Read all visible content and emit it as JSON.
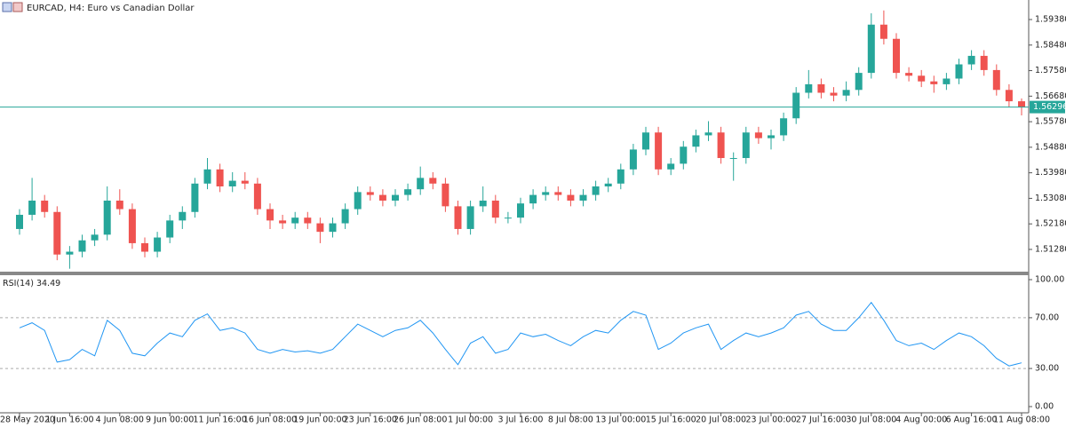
{
  "chart_data": {
    "type": "candlestick",
    "title": "EURCAD, H4:  Euro vs Canadian Dollar",
    "categories": [
      "28 May 2020",
      null,
      null,
      null,
      "1 Jun 16:00",
      null,
      null,
      null,
      "4 Jun 08:00",
      null,
      null,
      null,
      "9 Jun 00:00",
      null,
      null,
      null,
      "11 Jun 16:00",
      null,
      null,
      null,
      "16 Jun 08:00",
      null,
      null,
      null,
      "19 Jun 00:00",
      null,
      null,
      null,
      "23 Jun 16:00",
      null,
      null,
      null,
      "26 Jun 08:00",
      null,
      null,
      null,
      "1 Jul 00:00",
      null,
      null,
      null,
      "3 Jul 16:00",
      null,
      null,
      null,
      "8 Jul 08:00",
      null,
      null,
      null,
      "13 Jul 00:00",
      null,
      null,
      null,
      "15 Jul 16:00",
      null,
      null,
      null,
      "20 Jul 08:00",
      null,
      null,
      null,
      "23 Jul 00:00",
      null,
      null,
      null,
      "27 Jul 16:00",
      null,
      null,
      null,
      "30 Jul 08:00",
      null,
      null,
      null,
      "4 Aug 00:00",
      null,
      null,
      null,
      "6 Aug 16:00",
      null,
      null,
      null,
      "11 Aug 08:00"
    ],
    "open": [
      1.52,
      1.525,
      1.53,
      1.526,
      1.511,
      1.512,
      1.516,
      1.518,
      1.53,
      1.527,
      1.515,
      1.512,
      1.517,
      1.523,
      1.526,
      1.536,
      1.541,
      1.535,
      1.537,
      1.536,
      1.527,
      1.523,
      1.522,
      1.524,
      1.522,
      1.519,
      1.522,
      1.527,
      1.533,
      1.532,
      1.53,
      1.532,
      1.534,
      1.538,
      1.536,
      1.528,
      1.52,
      1.528,
      1.53,
      1.524,
      1.524,
      1.529,
      1.532,
      1.533,
      1.532,
      1.53,
      1.532,
      1.535,
      1.536,
      1.541,
      1.548,
      1.554,
      1.541,
      1.543,
      1.549,
      1.553,
      1.554,
      1.545,
      1.545,
      1.554,
      1.552,
      1.553,
      1.559,
      1.568,
      1.571,
      1.568,
      1.567,
      1.569,
      1.575,
      1.592,
      1.587,
      1.575,
      1.574,
      1.572,
      1.571,
      1.573,
      1.578,
      1.581,
      1.576,
      1.569,
      1.565
    ],
    "high": [
      1.527,
      1.538,
      1.532,
      1.528,
      1.514,
      1.518,
      1.52,
      1.535,
      1.534,
      1.529,
      1.517,
      1.519,
      1.525,
      1.528,
      1.538,
      1.545,
      1.543,
      1.54,
      1.54,
      1.538,
      1.529,
      1.525,
      1.526,
      1.526,
      1.524,
      1.524,
      1.529,
      1.535,
      1.535,
      1.534,
      1.534,
      1.536,
      1.542,
      1.54,
      1.538,
      1.53,
      1.53,
      1.535,
      1.532,
      1.526,
      1.531,
      1.534,
      1.535,
      1.535,
      1.534,
      1.534,
      1.537,
      1.538,
      1.543,
      1.55,
      1.556,
      1.556,
      1.545,
      1.551,
      1.555,
      1.558,
      1.556,
      1.547,
      1.556,
      1.556,
      1.555,
      1.561,
      1.57,
      1.576,
      1.573,
      1.57,
      1.572,
      1.577,
      1.596,
      1.597,
      1.589,
      1.577,
      1.576,
      1.574,
      1.575,
      1.58,
      1.583,
      1.583,
      1.578,
      1.571,
      1.566
    ],
    "low": [
      1.518,
      1.523,
      1.524,
      1.509,
      1.506,
      1.51,
      1.514,
      1.516,
      1.525,
      1.513,
      1.51,
      1.51,
      1.515,
      1.52,
      1.524,
      1.534,
      1.533,
      1.533,
      1.534,
      1.525,
      1.52,
      1.52,
      1.52,
      1.52,
      1.515,
      1.517,
      1.52,
      1.525,
      1.53,
      1.528,
      1.528,
      1.53,
      1.532,
      1.534,
      1.526,
      1.518,
      1.518,
      1.526,
      1.522,
      1.522,
      1.522,
      1.527,
      1.53,
      1.53,
      1.528,
      1.528,
      1.53,
      1.533,
      1.534,
      1.539,
      1.546,
      1.539,
      1.539,
      1.541,
      1.547,
      1.551,
      1.543,
      1.537,
      1.543,
      1.55,
      1.548,
      1.551,
      1.557,
      1.566,
      1.566,
      1.565,
      1.565,
      1.567,
      1.573,
      1.585,
      1.573,
      1.572,
      1.57,
      1.568,
      1.569,
      1.571,
      1.576,
      1.574,
      1.567,
      1.563,
      1.56
    ],
    "close": [
      1.525,
      1.53,
      1.526,
      1.511,
      1.512,
      1.516,
      1.518,
      1.53,
      1.527,
      1.515,
      1.512,
      1.517,
      1.523,
      1.526,
      1.536,
      1.541,
      1.535,
      1.537,
      1.536,
      1.527,
      1.523,
      1.522,
      1.524,
      1.522,
      1.519,
      1.522,
      1.527,
      1.533,
      1.532,
      1.53,
      1.532,
      1.534,
      1.538,
      1.536,
      1.528,
      1.52,
      1.528,
      1.53,
      1.524,
      1.524,
      1.529,
      1.532,
      1.533,
      1.532,
      1.53,
      1.532,
      1.535,
      1.536,
      1.541,
      1.548,
      1.554,
      1.541,
      1.543,
      1.549,
      1.553,
      1.554,
      1.545,
      1.545,
      1.554,
      1.552,
      1.553,
      1.559,
      1.568,
      1.571,
      1.568,
      1.567,
      1.569,
      1.575,
      1.592,
      1.587,
      1.575,
      1.574,
      1.572,
      1.571,
      1.573,
      1.578,
      1.581,
      1.576,
      1.569,
      1.565,
      1.56296
    ],
    "up_color": "#26a69a",
    "down_color": "#ef5350",
    "current_price_color": "#26a69a",
    "ylim": [
      1.50497,
      1.60068
    ],
    "yticks": [
      {
        "value": 1.5938,
        "label": "1.59380"
      },
      {
        "value": 1.5848,
        "label": "1.58480"
      },
      {
        "value": 1.5758,
        "label": "1.57580"
      },
      {
        "value": 1.5668,
        "label": "1.56680"
      },
      {
        "value": 1.5578,
        "label": "1.55780"
      },
      {
        "value": 1.5488,
        "label": "1.54880"
      },
      {
        "value": 1.5398,
        "label": "1.53980"
      },
      {
        "value": 1.5308,
        "label": "1.53080"
      },
      {
        "value": 1.5218,
        "label": "1.52180"
      },
      {
        "value": 1.5128,
        "label": "1.51280"
      }
    ],
    "rsi": {
      "type": "line",
      "name": "RSI(14)",
      "color": "#2196f3",
      "values": [
        62,
        66,
        60,
        35,
        37,
        45,
        40,
        68,
        60,
        42,
        40,
        50,
        58,
        55,
        68,
        73,
        60,
        62,
        58,
        45,
        42,
        45,
        43,
        44,
        42,
        45,
        55,
        65,
        60,
        55,
        60,
        62,
        68,
        58,
        45,
        33,
        50,
        55,
        42,
        45,
        58,
        55,
        57,
        52,
        48,
        55,
        60,
        58,
        68,
        75,
        72,
        45,
        50,
        58,
        62,
        65,
        45,
        52,
        58,
        55,
        58,
        62,
        72,
        75,
        65,
        60,
        60,
        70,
        82,
        68,
        52,
        48,
        50,
        45,
        52,
        58,
        55,
        48,
        38,
        32,
        34.49
      ],
      "ylim": [
        -4.9,
        102.8
      ],
      "yticks": [
        {
          "value": 100,
          "label": "100.00"
        },
        {
          "value": 70,
          "label": "70.00"
        },
        {
          "value": 30,
          "label": "30.00"
        },
        {
          "value": 0,
          "label": "0.00"
        }
      ],
      "dashed_levels": true
    }
  }
}
